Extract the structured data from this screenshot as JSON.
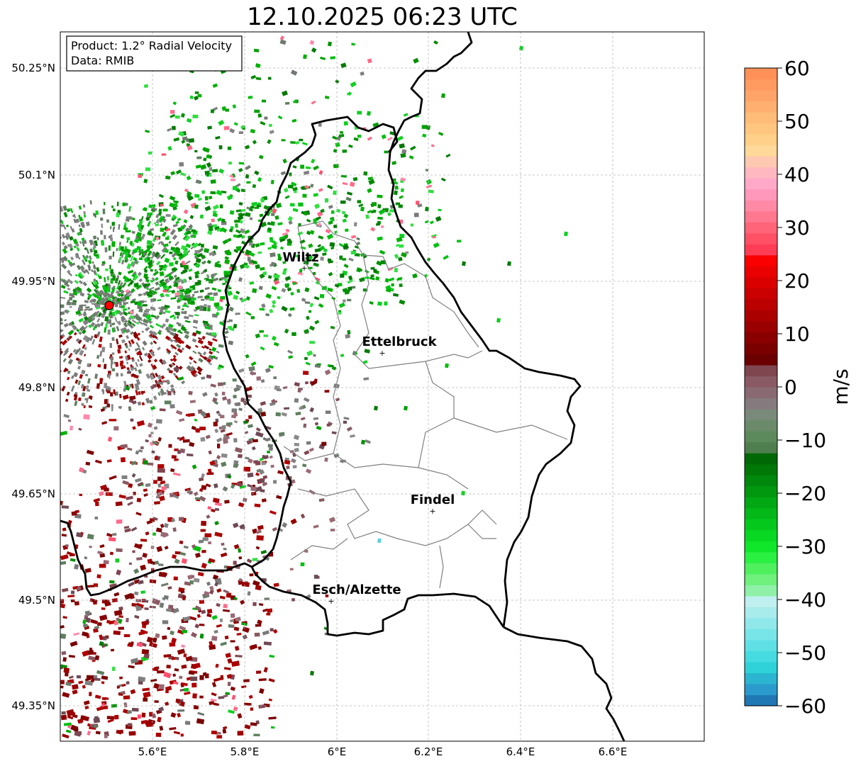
{
  "title": "12.10.2025 06:23 UTC",
  "info_box": {
    "product_line": "Product: 1.2° Radial Velocity",
    "data_line": "Data: RMIB"
  },
  "lat_labels": [
    "50.25°N",
    "50.1°N",
    "49.95°N",
    "49.8°N",
    "49.65°N",
    "49.5°N",
    "49.35°N"
  ],
  "lon_labels": [
    "5.6°E",
    "5.8°E",
    "6°E",
    "6.2°E",
    "6.4°E",
    "6.6°E"
  ],
  "cities": [
    {
      "name": "Wiltz"
    },
    {
      "name": "Ettelbruck"
    },
    {
      "name": "Findel"
    },
    {
      "name": "Esch/Alzette"
    }
  ],
  "colorbar": {
    "unit": "m/s",
    "min": -60,
    "max": 60,
    "ticks": [
      "60",
      "50",
      "40",
      "30",
      "20",
      "10",
      "0",
      "−10",
      "−20",
      "−30",
      "−40",
      "−50",
      "−60"
    ]
  },
  "colors": {
    "radar_site": "#ff0000",
    "border": "#000000",
    "canton_lines": "#808080"
  }
}
